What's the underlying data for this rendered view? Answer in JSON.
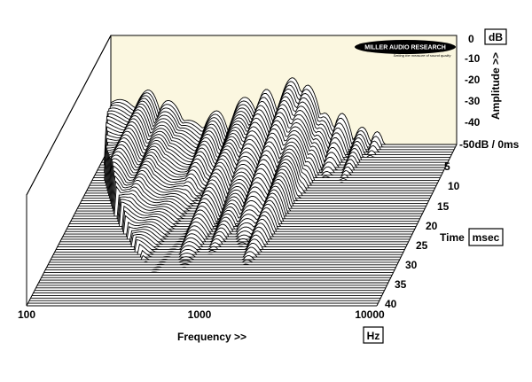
{
  "logo": {
    "text": "MILLER AUDIO RESEARCH",
    "tagline": "Setting the measure of sound quality"
  },
  "colors": {
    "back_wall": "#fbf7e0",
    "trace": "#000000",
    "fill": "#ffffff"
  },
  "chart_data": {
    "type": "waterfall",
    "title": "",
    "x_axis": {
      "label": "Frequency >>",
      "unit": "Hz",
      "scale": "log",
      "range": [
        100,
        10000
      ],
      "ticks": [
        "100",
        "1000",
        "10000"
      ]
    },
    "y_axis": {
      "label": "Amplitude >>",
      "unit": "dB",
      "range": [
        -50,
        0
      ],
      "ticks": [
        "0",
        "-10",
        "-20",
        "-30",
        "-40",
        "-50dB / 0ms"
      ]
    },
    "z_axis": {
      "label": "Time",
      "unit": "msec",
      "range": [
        0,
        40
      ],
      "ticks": [
        "5",
        "10",
        "15",
        "20",
        "25",
        "30",
        "35",
        "40"
      ]
    },
    "slice_count": 64,
    "decay_peaks": [
      {
        "freq_hz": 160,
        "initial_db": -24
      },
      {
        "freq_hz": 220,
        "initial_db": -28
      },
      {
        "freq_hz": 400,
        "initial_db": -33
      },
      {
        "freq_hz": 600,
        "initial_db": -26
      },
      {
        "freq_hz": 800,
        "initial_db": -25
      },
      {
        "freq_hz": 1100,
        "initial_db": -18
      },
      {
        "freq_hz": 1400,
        "initial_db": -22
      },
      {
        "freq_hz": 1700,
        "initial_db": -34
      },
      {
        "freq_hz": 2200,
        "initial_db": -36
      },
      {
        "freq_hz": 2800,
        "initial_db": -41
      },
      {
        "freq_hz": 3500,
        "initial_db": -45
      }
    ]
  }
}
